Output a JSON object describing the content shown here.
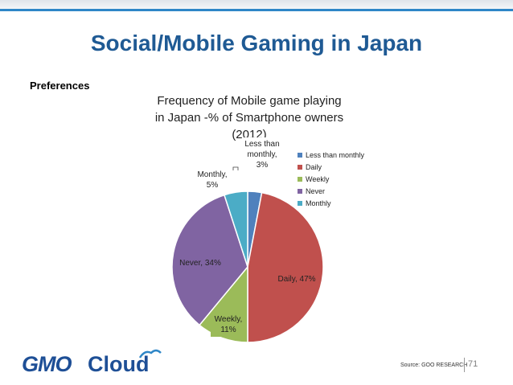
{
  "slide": {
    "title": "Social/Mobile Gaming in Japan",
    "subheading": "Preferences",
    "source": "Source: GOO RESEARCH",
    "page_number": "71",
    "logo": "GMO Cloud"
  },
  "chart_data": {
    "type": "pie",
    "title": "Frequency of Mobile game playing in Japan -% of Smartphone owners (2012)",
    "slices": [
      {
        "name": "Less than monthly",
        "value": 3,
        "label": "Less than monthly, 3%",
        "color": "#4f81bd"
      },
      {
        "name": "Daily",
        "value": 47,
        "label": "Daily, 47%",
        "color": "#c0504d"
      },
      {
        "name": "Weekly",
        "value": 11,
        "label": "Weekly, 11%",
        "color": "#9bbb59"
      },
      {
        "name": "Never",
        "value": 34,
        "label": "Never, 34%",
        "color": "#8064a2"
      },
      {
        "name": "Monthly",
        "value": 5,
        "label": "Monthly, 5%",
        "color": "#4bacc6"
      }
    ],
    "legend": [
      "Less than monthly",
      "Daily",
      "Weekly",
      "Never",
      "Monthly"
    ],
    "legend_position": "top-right"
  }
}
